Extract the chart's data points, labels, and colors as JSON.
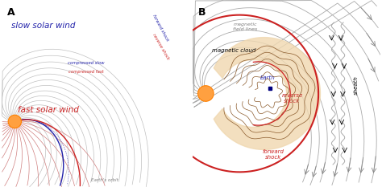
{
  "panel_A_label": "A",
  "panel_B_label": "B",
  "slow_solar_wind_text": "slow solar wind",
  "fast_solar_wind_text": "fast solar wind",
  "compressed_slow_text": "compressed slow",
  "compressed_fast_text": "compressed fast",
  "forward_shock_text_A": "forward shock",
  "reverse_shock_text_A": "reverse shock",
  "earths_orbit_text": "Earth's orbit",
  "magnetic_field_lines_text": "magnetic\nfield lines",
  "magnetic_cloud_text": "magnetic cloud",
  "earth_text": "Earth",
  "reverse_shock_text_B": "reverse\nshock",
  "forward_shock_text_B": "forward\nshock",
  "sheath_text": "sheath",
  "sun_color": "#FFA040",
  "sun_edge_color": "#FF8000",
  "slow_wind_color": "#c0c0c0",
  "fast_wind_color": "#d08080",
  "forward_shock_color": "#2222aa",
  "reverse_shock_color": "#cc2222",
  "magnetic_cloud_fill": "#f0d8b0",
  "earth_dot_color": "#000080",
  "background": "#ffffff",
  "wavy_color": "#aaaaaa",
  "field_line_color": "#aaaaaa"
}
